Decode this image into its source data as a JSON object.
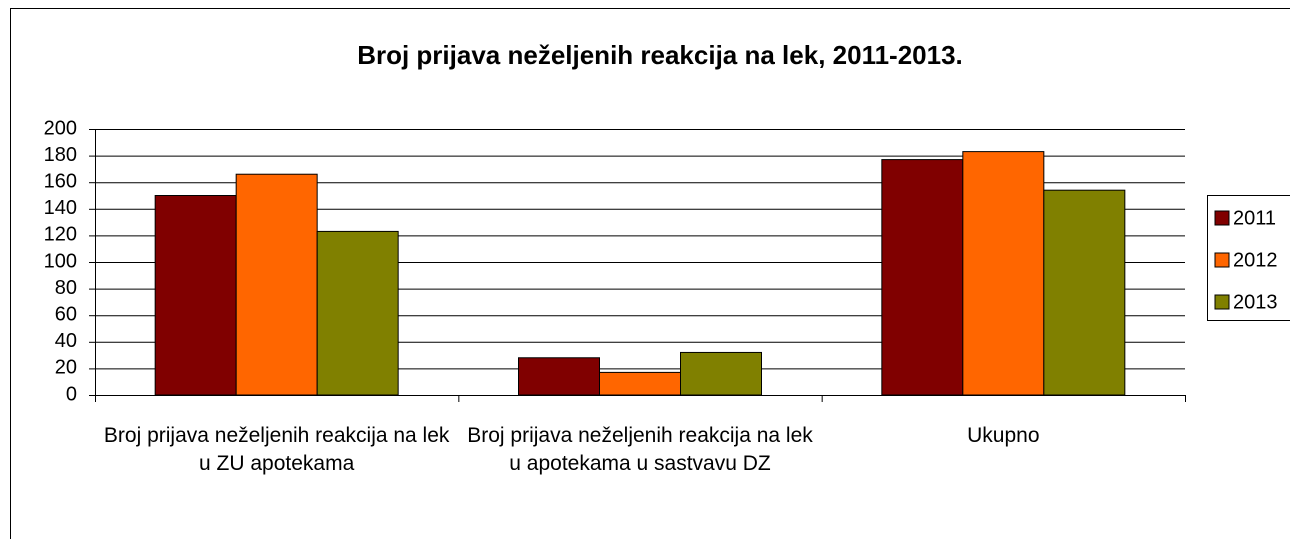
{
  "chart_data": {
    "type": "bar",
    "title": "Broj prijava neželjenih reakcija na lek, 2011-2013.",
    "categories": [
      "Broj prijava neželjenih reakcija na lek u ZU apotekama",
      "Broj prijava neželjenih reakcija na lek u apotekama u sastvavu DZ",
      "Ukupno"
    ],
    "series": [
      {
        "name": "2011",
        "color": "#800000",
        "values": [
          150,
          28,
          177
        ]
      },
      {
        "name": "2012",
        "color": "#ff6600",
        "values": [
          166,
          17,
          183
        ]
      },
      {
        "name": "2013",
        "color": "#808000",
        "values": [
          123,
          32,
          154
        ]
      }
    ],
    "ylim": [
      0,
      200
    ],
    "yticks": [
      0,
      20,
      40,
      60,
      80,
      100,
      120,
      140,
      160,
      180,
      200
    ],
    "grid": true,
    "legend": "right"
  }
}
